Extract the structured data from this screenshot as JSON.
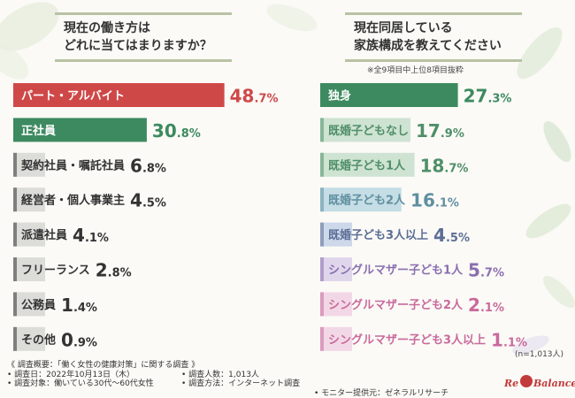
{
  "questions": {
    "left": [
      "現在の働き方は",
      "どれに当てはまりますか？"
    ],
    "right": [
      "現在同居している",
      "家族構成を教えてください"
    ]
  },
  "note_top": "※全9項目中上位8項目抜粋",
  "sample_note": "(n=1,013人)",
  "footer": {
    "col1": [
      "《 調査概要：「働く女性の健康対策」に関する調査 》",
      "• 調査日：2022年10月13日（木）",
      "• 調査対象：働いている30代～60代女性"
    ],
    "col2": [
      "• 調査人数：1,013人",
      "• 調査方法：インターネット調査"
    ],
    "col3": [
      "• モニター提供元：ゼネラルリサーチ"
    ]
  },
  "logo": {
    "left": "Re",
    "right": "Balance"
  },
  "colors": {
    "accent_red": "#cf4848",
    "accent_green": "#3d8a60",
    "faded_gray": "#dcdcd8",
    "faded_green": "#cfe3d3",
    "faded_teal": "#c5dde5",
    "faded_blue": "#cdd8ea",
    "faded_purple": "#e0d6ec",
    "faded_pink": "#f2d8e6"
  },
  "chart_data": [
    {
      "type": "bar",
      "orientation": "horizontal",
      "categories": [
        "パート・アルバイト",
        "正社員",
        "契約社員・嘱託社員",
        "経営者・個人事業主",
        "派遣社員",
        "フリーランス",
        "公務員",
        "その他"
      ],
      "values": [
        48.7,
        30.8,
        6.8,
        4.5,
        4.1,
        2.8,
        1.4,
        0.9
      ],
      "value_ints": [
        "48",
        "30",
        "6",
        "4",
        "4",
        "2",
        "1",
        "0"
      ],
      "value_decs": [
        ".7%",
        ".8%",
        ".8%",
        ".5%",
        ".1%",
        ".8%",
        ".4%",
        ".9%"
      ],
      "unit": "%",
      "bar_colors": [
        "#cf4848",
        "#3d8a60",
        "#dcdcd8",
        "#dcdcd8",
        "#dcdcd8",
        "#dcdcd8",
        "#dcdcd8",
        "#dcdcd8"
      ],
      "label_colors": [
        "#ffffff",
        "#ffffff",
        "#333333",
        "#333333",
        "#333333",
        "#333333",
        "#333333",
        "#333333"
      ],
      "value_colors": [
        "#cf4848",
        "#3d8a60",
        "#333333",
        "#333333",
        "#333333",
        "#333333",
        "#333333",
        "#333333"
      ]
    },
    {
      "type": "bar",
      "orientation": "horizontal",
      "categories": [
        "独身",
        "既婚子どもなし",
        "既婚子ども1人",
        "既婚子ども2人",
        "既婚子ども3人以上",
        "シングルマザー子ども1人",
        "シングルマザー子ども2人",
        "シングルマザー子ども3人以上"
      ],
      "values": [
        27.3,
        17.9,
        18.7,
        16.1,
        4.5,
        5.7,
        2.1,
        1.1
      ],
      "value_ints": [
        "27",
        "17",
        "18",
        "16",
        "4",
        "5",
        "2",
        "1"
      ],
      "value_decs": [
        ".3%",
        ".9%",
        ".7%",
        ".1%",
        ".5%",
        ".7%",
        ".1%",
        ".1%"
      ],
      "unit": "%",
      "bar_colors": [
        "#3d8a60",
        "#cfe3d3",
        "#cfe3d3",
        "#c5dde5",
        "#cdd8ea",
        "#e0d6ec",
        "#f2d8e6",
        "#f2d8e6"
      ],
      "label_colors": [
        "#ffffff",
        "#4f8f68",
        "#4f8f68",
        "#5f8fa0",
        "#5c6e96",
        "#8a6fb0",
        "#c96a9c",
        "#c96a9c"
      ],
      "value_colors": [
        "#3d8a60",
        "#4f8f68",
        "#4f8f68",
        "#5f8fa0",
        "#5c6e96",
        "#8a6fb0",
        "#c96a9c",
        "#c96a9c"
      ]
    }
  ]
}
